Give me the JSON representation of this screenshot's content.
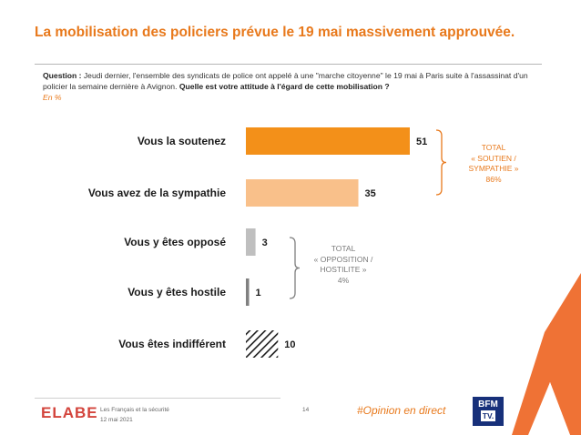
{
  "header": {
    "title": "La mobilisation des policiers prévue le 19 mai massivement approuvée."
  },
  "question": {
    "prefix": "Question :",
    "text": " Jeudi dernier, l'ensemble des syndicats de police ont appelé à une \"marche citoyenne\" le 19 mai à Paris suite à l'assassinat d'un policier la semaine dernière à Avignon.",
    "bold_text": " Quelle est votre attitude à l'égard de cette mobilisation ?",
    "unit": "En %"
  },
  "chart_data": {
    "type": "bar",
    "orientation": "horizontal",
    "categories": [
      "Vous la soutenez",
      "Vous avez de la sympathie",
      "Vous y êtes opposé",
      "Vous y êtes hostile",
      "Vous êtes indifférent"
    ],
    "values": [
      51,
      35,
      3,
      1,
      10
    ],
    "value_labels": [
      "51",
      "35",
      "3",
      "1",
      "10"
    ],
    "colors": [
      "#f39019",
      "#f9c08a",
      "#bfbfbf",
      "#808080",
      "hatched"
    ],
    "xlim": [
      0,
      51
    ],
    "groups": [
      {
        "lines": [
          "TOTAL",
          "« SOUTIEN /",
          "SYMPATHIE »",
          "86%"
        ],
        "color": "#e8791c"
      },
      {
        "lines": [
          "TOTAL",
          "« OPPOSITION /",
          "HOSTILITE »",
          "4%"
        ],
        "color": "#7a7a7a"
      }
    ]
  },
  "footer": {
    "logo": "ELABE",
    "study": "Les Français et la sécurité",
    "date": "12 mai 2021",
    "page": "14",
    "hashtag": "#Opinion en direct",
    "channel_top": "BFM",
    "channel_bottom": "TV."
  }
}
